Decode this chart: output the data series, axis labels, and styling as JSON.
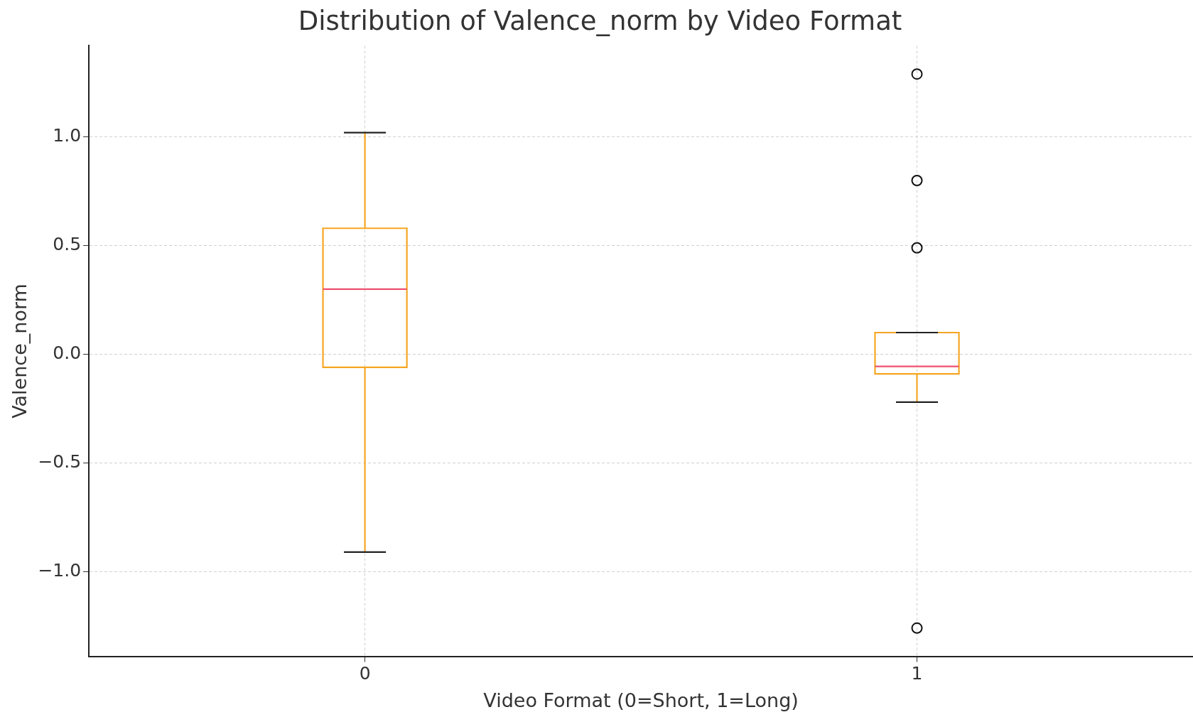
{
  "chart_data": {
    "type": "box",
    "title": "Distribution of Valence_norm by Video Format",
    "xlabel": "Video Format (0=Short, 1=Long)",
    "ylabel": "Valence_norm",
    "categories": [
      "0",
      "1"
    ],
    "boxes": [
      {
        "low": -0.91,
        "q1": -0.06,
        "median": 0.3,
        "q3": 0.58,
        "high": 1.02
      },
      {
        "low": -0.22,
        "q1": -0.09,
        "median": -0.056,
        "q3": 0.1,
        "high": 0.1,
        "outliers": [
          1.29,
          0.8,
          0.49,
          -1.26
        ]
      }
    ],
    "color": "#f5a623",
    "ylim": [
      -1.39,
      1.42
    ],
    "yticks": [
      {
        "value": -1,
        "label": "−1.0"
      },
      {
        "value": -0.5,
        "label": "−0.5"
      },
      {
        "value": 0,
        "label": "0.0"
      },
      {
        "value": 0.5,
        "label": "0.5"
      },
      {
        "value": 1,
        "label": "1.0"
      }
    ],
    "grid": true,
    "legend": false
  }
}
